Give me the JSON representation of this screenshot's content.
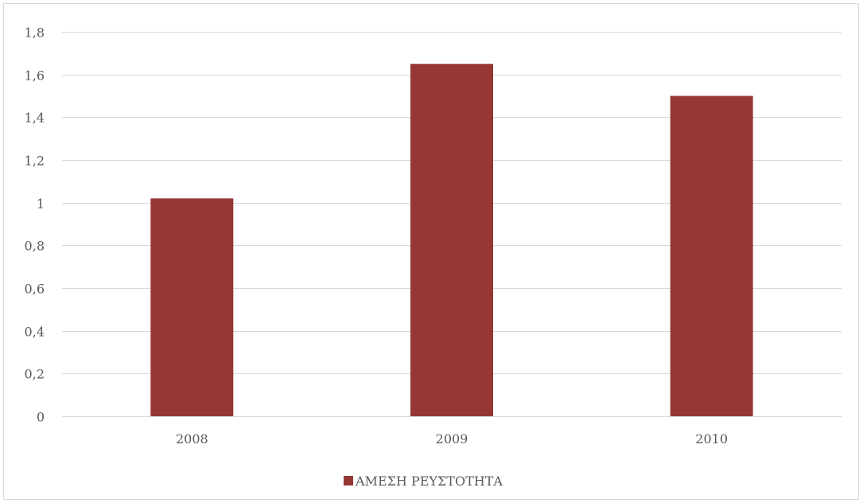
{
  "chart_data": {
    "type": "bar",
    "title": "",
    "xlabel": "",
    "ylabel": "",
    "categories": [
      "2008",
      "2009",
      "2010"
    ],
    "series": [
      {
        "name": "ΑΜΕΣΗ ΡΕΥΣΤΟΤΗΤΑ",
        "values": [
          1.02,
          1.65,
          1.5
        ],
        "color": "#953735"
      }
    ],
    "ylim": [
      0,
      1.8
    ],
    "yticks": [
      0,
      0.2,
      0.4,
      0.6,
      0.8,
      1,
      1.2,
      1.4,
      1.6,
      1.8
    ],
    "ytick_labels": [
      "0",
      "0,2",
      "0,4",
      "0,6",
      "0,8",
      "1",
      "1,2",
      "1,4",
      "1,6",
      "1,8"
    ],
    "grid": true,
    "legend_position": "bottom",
    "gridline_color": "#d9d9d9",
    "text_color": "#595959"
  }
}
